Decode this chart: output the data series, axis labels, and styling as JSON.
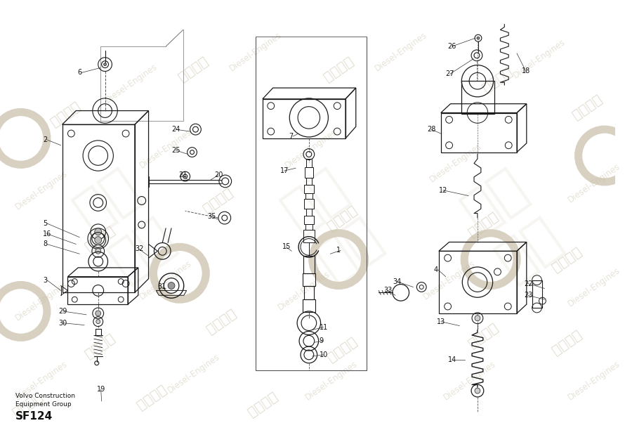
{
  "bg_color": "#ffffff",
  "line_color": "#1a1a1a",
  "fig_width": 8.9,
  "fig_height": 6.29,
  "dpi": 100,
  "watermark_texts": [
    "紫发动力",
    "Diesel-Engines"
  ],
  "watermark_color": "#c8c0a8",
  "footer_line1": "Volvo Construction",
  "footer_line2": "Equipment Group",
  "footer_part": "SF124",
  "part_labels": [
    [
      1,
      487,
      357,
      478,
      362
    ],
    [
      2,
      62,
      197,
      88,
      205
    ],
    [
      3,
      62,
      400,
      88,
      415
    ],
    [
      4,
      628,
      385,
      645,
      395
    ],
    [
      5,
      62,
      318,
      115,
      338
    ],
    [
      6,
      112,
      100,
      145,
      93
    ],
    [
      7,
      418,
      192,
      432,
      188
    ],
    [
      8,
      62,
      348,
      115,
      362
    ],
    [
      9,
      462,
      488,
      455,
      490
    ],
    [
      10,
      462,
      508,
      452,
      510
    ],
    [
      11,
      462,
      468,
      452,
      472
    ],
    [
      12,
      635,
      270,
      678,
      278
    ],
    [
      13,
      632,
      460,
      665,
      466
    ],
    [
      14,
      648,
      515,
      673,
      515
    ],
    [
      15,
      408,
      352,
      422,
      358
    ],
    [
      16,
      62,
      333,
      110,
      348
    ],
    [
      17,
      405,
      242,
      428,
      238
    ],
    [
      18,
      755,
      98,
      748,
      72
    ],
    [
      19,
      140,
      558,
      147,
      575
    ],
    [
      20,
      310,
      248,
      305,
      255
    ],
    [
      21,
      258,
      248,
      272,
      255
    ],
    [
      22,
      758,
      405,
      788,
      412
    ],
    [
      23,
      758,
      422,
      788,
      428
    ],
    [
      24,
      248,
      182,
      275,
      185
    ],
    [
      25,
      248,
      212,
      272,
      218
    ],
    [
      26,
      648,
      62,
      688,
      50
    ],
    [
      27,
      645,
      102,
      685,
      80
    ],
    [
      28,
      618,
      182,
      638,
      188
    ],
    [
      29,
      85,
      445,
      125,
      450
    ],
    [
      30,
      85,
      462,
      122,
      465
    ],
    [
      31,
      228,
      410,
      240,
      412
    ],
    [
      32,
      195,
      355,
      215,
      365
    ],
    [
      33,
      555,
      415,
      572,
      422
    ],
    [
      34,
      568,
      402,
      598,
      410
    ],
    [
      35,
      300,
      308,
      315,
      312
    ]
  ]
}
